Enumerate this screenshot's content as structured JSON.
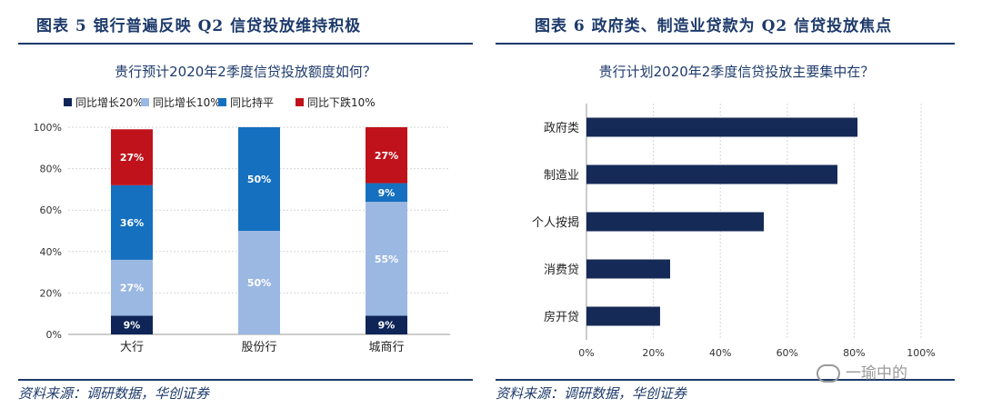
{
  "left": {
    "figure_title": "图表 5   银行普遍反映 Q2 信贷投放维持积极",
    "source": "资料来源：调研数据，华创证券"
  },
  "right": {
    "figure_title": "图表 6   政府类、制造业贷款为 Q2 信贷投放焦点",
    "source": "资料来源：调研数据，华创证券"
  },
  "watermark": "一瑜中的",
  "chart_data": [
    {
      "type": "bar",
      "stacked": true,
      "orientation": "vertical",
      "title": "贵行预计2020年2季度信贷投放额度如何？",
      "categories": [
        "大行",
        "股份行",
        "城商行"
      ],
      "series": [
        {
          "name": "同比增长20%",
          "color": "#0f2557",
          "values": [
            9,
            0,
            9
          ]
        },
        {
          "name": "同比增长10%",
          "color": "#9bb8e3",
          "values": [
            27,
            50,
            55
          ]
        },
        {
          "name": "同比持平",
          "color": "#1570c0",
          "values": [
            36,
            50,
            9
          ]
        },
        {
          "name": "同比下跌10%",
          "color": "#c0121a",
          "values": [
            27,
            0,
            27
          ]
        }
      ],
      "ylim": [
        0,
        100
      ],
      "yticks": [
        "0%",
        "20%",
        "40%",
        "60%",
        "80%",
        "100%"
      ],
      "grid": true,
      "legend": "top"
    },
    {
      "type": "bar",
      "orientation": "horizontal",
      "title": "贵行计划2020年2季度信贷投放主要集中在？",
      "categories": [
        "政府类",
        "制造业",
        "个人按揭",
        "消费贷",
        "房开贷"
      ],
      "values": [
        81,
        75,
        53,
        25,
        22
      ],
      "color": "#152a57",
      "xlim": [
        0,
        100
      ],
      "xticks": [
        "0%",
        "20%",
        "40%",
        "60%",
        "80%",
        "100%"
      ],
      "grid": true
    }
  ]
}
